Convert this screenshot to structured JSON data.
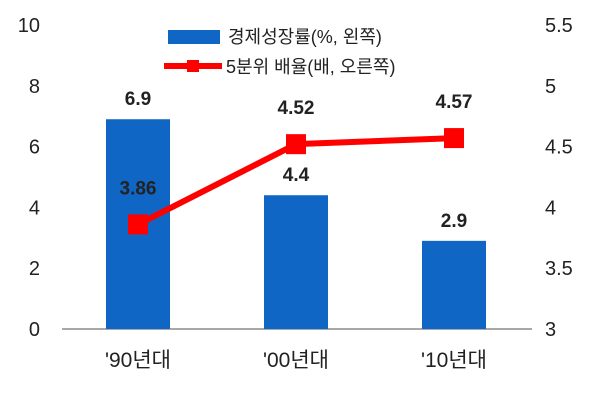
{
  "chart_data": {
    "type": "bar+line",
    "categories": [
      "'90년대",
      "'00년대",
      "'10년대"
    ],
    "series": [
      {
        "name": "경제성장률(%, 왼쪽)",
        "type": "bar",
        "axis": "left",
        "color": "#0F66C4",
        "values": [
          6.9,
          4.4,
          2.9
        ],
        "labels": [
          "6.9",
          "4.4",
          "2.9"
        ]
      },
      {
        "name": "5분위 배율(배, 오른쪽)",
        "type": "line",
        "axis": "right",
        "color": "#FF0000",
        "values": [
          3.86,
          4.52,
          4.57
        ],
        "labels": [
          "3.86",
          "4.52",
          "4.57"
        ]
      }
    ],
    "y_left": {
      "ylim": [
        0,
        10
      ],
      "ticks": [
        "0",
        "2",
        "4",
        "6",
        "8",
        "10"
      ]
    },
    "y_right": {
      "ylim": [
        3,
        5.5
      ],
      "ticks": [
        "3",
        "3.5",
        "4",
        "4.5",
        "5",
        "5.5"
      ]
    },
    "legend_position": "top-center",
    "grid": false
  }
}
